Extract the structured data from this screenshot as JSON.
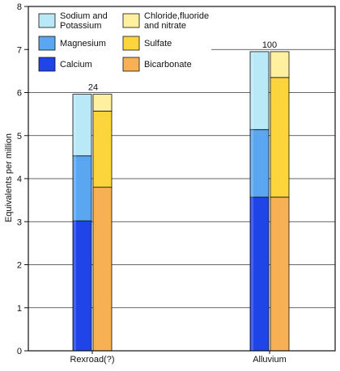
{
  "chart_data": {
    "type": "bar",
    "subtype": "stacked-grouped",
    "ylabel": "Equivalents per million",
    "xlabel": "",
    "ylim": [
      0,
      8
    ],
    "yticks": [
      0,
      1,
      2,
      3,
      4,
      5,
      6,
      7,
      8
    ],
    "grid": "horizontal",
    "categories": [
      "Rexroad(?)",
      "Alluvium"
    ],
    "totals": [
      "24",
      "100"
    ],
    "stacks": [
      {
        "id": "cations",
        "series": [
          {
            "name": "Calcium",
            "color": "#1f44e8",
            "values": [
              3.02,
              3.57
            ]
          },
          {
            "name": "Magnesium",
            "color": "#5aa6f0",
            "values": [
              1.51,
              1.57
            ]
          },
          {
            "name": "Sodium and Potassium",
            "color": "#b9e8f7",
            "values": [
              1.43,
              1.81
            ]
          }
        ]
      },
      {
        "id": "anions",
        "series": [
          {
            "name": "Bicarbonate",
            "color": "#f8b055",
            "values": [
              3.8,
              3.57
            ]
          },
          {
            "name": "Sulfate",
            "color": "#fcd53c",
            "values": [
              1.77,
              2.78
            ]
          },
          {
            "name": "Chloride,fluoride and nitrate",
            "color": "#fff0a0",
            "values": [
              0.39,
              0.6
            ]
          }
        ]
      }
    ],
    "legend": {
      "placement": "top-left",
      "columns": [
        [
          {
            "lines": [
              "Sodium and",
              "Potassium"
            ],
            "color": "#b9e8f7"
          },
          {
            "lines": [
              "Magnesium"
            ],
            "color": "#5aa6f0"
          },
          {
            "lines": [
              "Calcium"
            ],
            "color": "#1f44e8"
          }
        ],
        [
          {
            "lines": [
              "Chloride,fluoride",
              "and nitrate"
            ],
            "color": "#fff0a0"
          },
          {
            "lines": [
              "Sulfate"
            ],
            "color": "#fcd53c"
          },
          {
            "lines": [
              "Bicarbonate"
            ],
            "color": "#f8b055"
          }
        ]
      ]
    }
  }
}
